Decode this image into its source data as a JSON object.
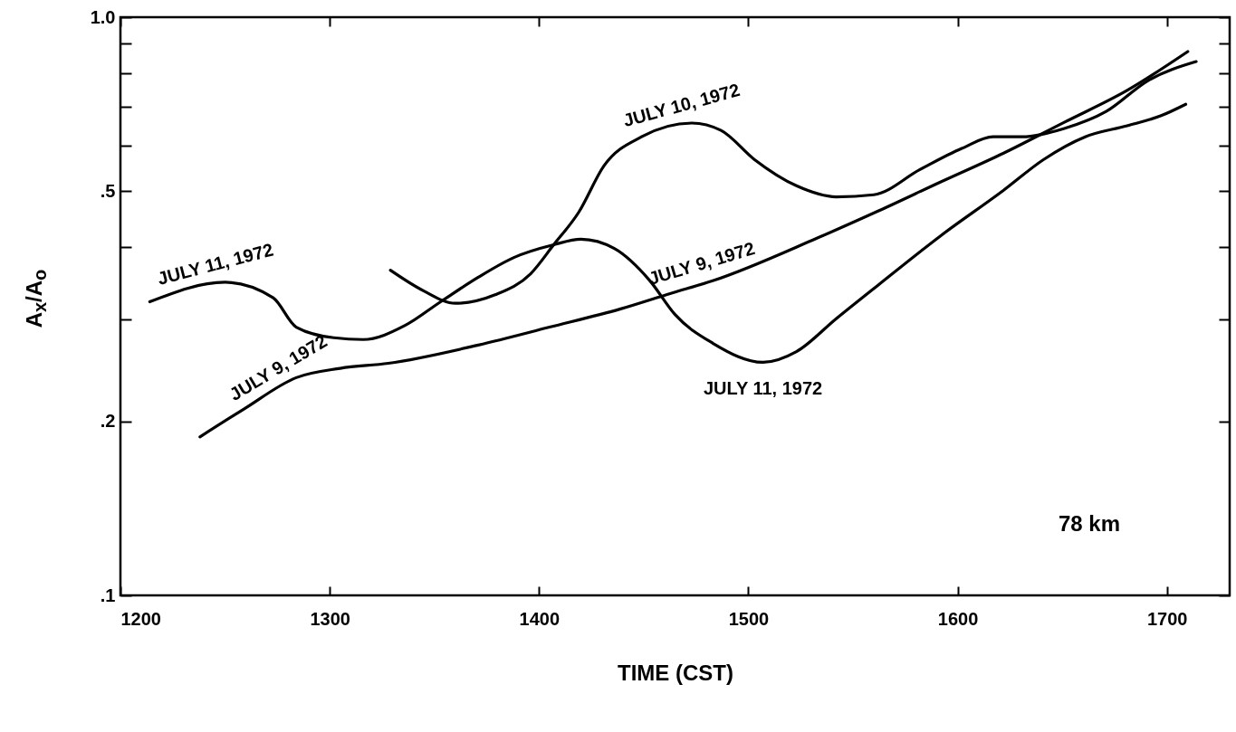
{
  "chart_data": {
    "type": "line",
    "xlabel": "TIME (CST)",
    "ylabel": "A$_{x}$/A$_{o}$",
    "log": "y",
    "xlim": [
      1200,
      1730
    ],
    "xticks": [
      1200,
      1300,
      1400,
      1500,
      1600,
      1700
    ],
    "ylim": [
      0.1,
      1.0
    ],
    "yticks": [
      {
        "value": 0.1,
        "label": ".1"
      },
      {
        "value": 0.2,
        "label": ".2"
      },
      {
        "value": 0.3,
        "label": null
      },
      {
        "value": 0.4,
        "label": null
      },
      {
        "value": 0.5,
        "label": ".5"
      },
      {
        "value": 0.6,
        "label": null
      },
      {
        "value": 0.7,
        "label": null
      },
      {
        "value": 0.8,
        "label": null
      },
      {
        "value": 0.9,
        "label": null
      },
      {
        "value": 1.0,
        "label": "1.0"
      }
    ],
    "grid": false,
    "marker": "none",
    "line_style": "solid",
    "series": [
      {
        "color": "#000000",
        "x": [
          1214,
          1250,
          1273,
          1284,
          1302,
          1316,
          1336,
          1353,
          1371,
          1388,
          1407,
          1420,
          1436,
          1453,
          1465,
          1483,
          1507,
          1523,
          1542,
          1562,
          1592,
          1622,
          1641,
          1661,
          1681,
          1697,
          1709
        ],
        "values": [
          0.322,
          0.348,
          0.327,
          0.291,
          0.279,
          0.277,
          0.293,
          0.322,
          0.355,
          0.384,
          0.404,
          0.413,
          0.398,
          0.35,
          0.306,
          0.273,
          0.253,
          0.264,
          0.301,
          0.344,
          0.419,
          0.502,
          0.567,
          0.621,
          0.649,
          0.675,
          0.707
        ]
      },
      {
        "color": "#000000",
        "x": [
          1329,
          1345,
          1360,
          1379,
          1396,
          1407,
          1419,
          1431,
          1449,
          1473,
          1487,
          1503,
          1523,
          1542,
          1560,
          1582,
          1602,
          1617,
          1631,
          1651,
          1671,
          1691,
          1714
        ],
        "values": [
          0.365,
          0.336,
          0.32,
          0.331,
          0.36,
          0.404,
          0.46,
          0.553,
          0.621,
          0.656,
          0.637,
          0.567,
          0.511,
          0.489,
          0.493,
          0.545,
          0.593,
          0.621,
          0.621,
          0.642,
          0.687,
          0.777,
          0.838
        ]
      },
      {
        "color": "#000000",
        "x": [
          1238,
          1259,
          1284,
          1305,
          1328,
          1371,
          1405,
          1439,
          1463,
          1483,
          1533,
          1562,
          1592,
          1622,
          1651,
          1681,
          1710
        ],
        "values": [
          0.188,
          0.21,
          0.238,
          0.247,
          0.252,
          0.271,
          0.291,
          0.313,
          0.333,
          0.35,
          0.415,
          0.462,
          0.519,
          0.582,
          0.658,
          0.747,
          0.872
        ]
      }
    ],
    "annotations": [
      {
        "text": "JULY 11, 1972",
        "x": 1250,
        "y": 0.348
      },
      {
        "text": "JULY 10, 1972",
        "x": 1473,
        "y": 0.656
      },
      {
        "text": "JULY 9, 1972",
        "x": 1284,
        "y": 0.238
      },
      {
        "text": "JULY 9, 1972",
        "x": 1483,
        "y": 0.35
      },
      {
        "text": "JULY 11, 1972",
        "x": 1507,
        "y": 0.253
      },
      "78 km"
    ]
  }
}
